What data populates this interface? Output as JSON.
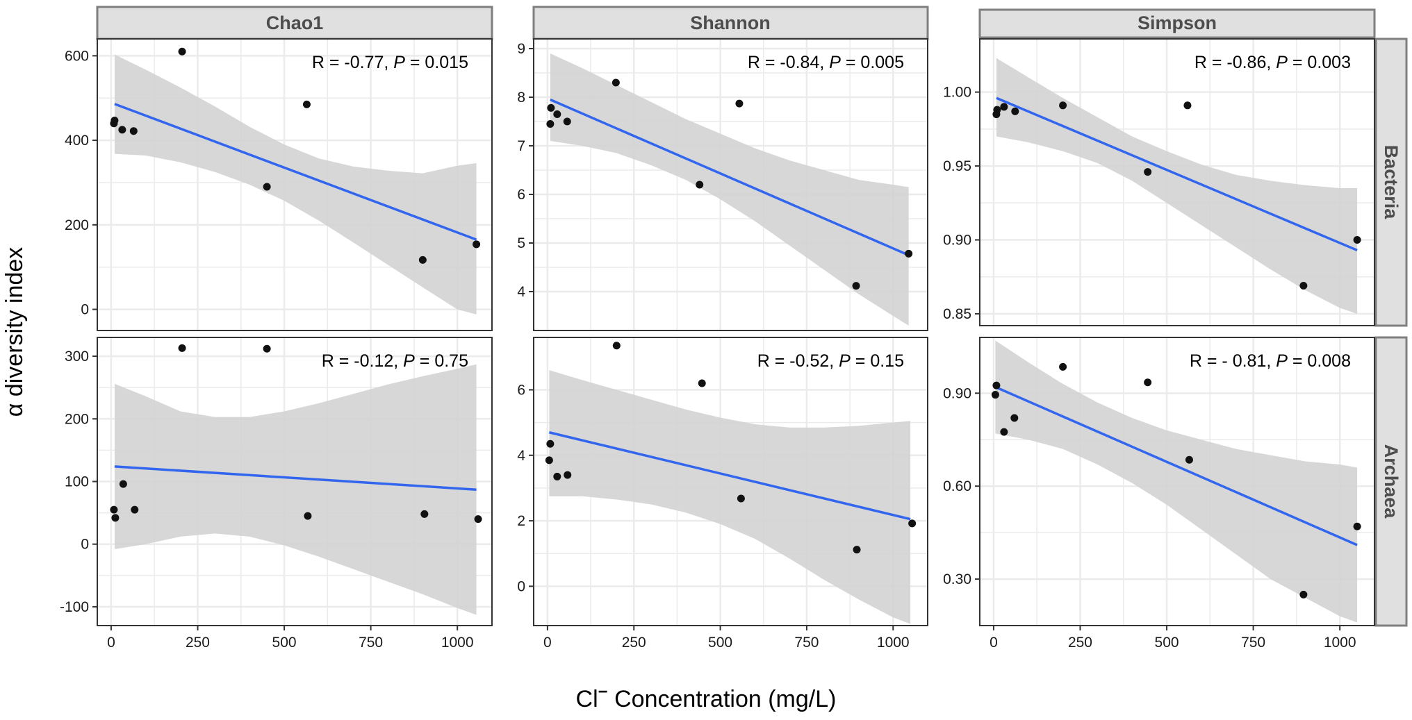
{
  "figure": {
    "y_axis_title": "α diversity index",
    "x_axis_title_prefix": "Cl",
    "x_axis_title_superscript": "−",
    "x_axis_title_suffix": " Concentration (mg/L)",
    "column_strips": [
      "Chao1",
      "Shannon",
      "Simpson"
    ],
    "row_strips": [
      "Bacteria",
      "Archaea"
    ],
    "colors": {
      "fit_line": "#3366ee",
      "ribbon": "#d3d3d3",
      "points": "#111111",
      "grid": "#ebebeb",
      "strip_fill": "#e0e0e0",
      "strip_border": "#7f7f7f",
      "panel_border": "#333333"
    }
  },
  "chart_data": [
    {
      "type": "scatter",
      "metric": "Chao1",
      "group": "Bacteria",
      "annotation": {
        "r": "R = -0.77, ",
        "p_label": "P",
        "p_value": " = 0.015"
      },
      "xlim": [
        -40,
        1100
      ],
      "ylim": [
        -50,
        640
      ],
      "xticks": [
        0,
        250,
        500,
        750,
        1000
      ],
      "yticks": [
        0,
        200,
        400,
        600
      ],
      "xticklabels": [
        "0",
        "250",
        "500",
        "750",
        "1000"
      ],
      "yticklabels": [
        "0",
        "200",
        "400",
        "600"
      ],
      "x": [
        8,
        10,
        32,
        65,
        205,
        450,
        565,
        900,
        1055
      ],
      "y": [
        440,
        447,
        425,
        422,
        610,
        290,
        485,
        117,
        154
      ],
      "fit": {
        "x": [
          10,
          1055
        ],
        "y": [
          486,
          165
        ]
      },
      "band": {
        "x": [
          10,
          100,
          200,
          300,
          400,
          500,
          600,
          700,
          800,
          900,
          1000,
          1055
        ],
        "lower": [
          368,
          364,
          348,
          325,
          295,
          257,
          210,
          158,
          105,
          52,
          0,
          -12
        ],
        "upper": [
          603,
          567,
          525,
          480,
          432,
          390,
          357,
          338,
          328,
          322,
          340,
          346
        ]
      }
    },
    {
      "type": "scatter",
      "metric": "Shannon",
      "group": "Bacteria",
      "annotation": {
        "r": "R = -0.84, ",
        "p_label": "P",
        "p_value": " = 0.005"
      },
      "xlim": [
        -40,
        1100
      ],
      "ylim": [
        3.2,
        9.2
      ],
      "xticks": [
        0,
        250,
        500,
        750,
        1000
      ],
      "yticks": [
        4,
        5,
        6,
        7,
        8,
        9
      ],
      "xticklabels": [
        "0",
        "250",
        "500",
        "750",
        "1000"
      ],
      "yticklabels": [
        "4",
        "5",
        "6",
        "7",
        "8",
        "9"
      ],
      "x": [
        8,
        10,
        28,
        57,
        198,
        440,
        555,
        893,
        1045
      ],
      "y": [
        7.45,
        7.78,
        7.65,
        7.5,
        8.3,
        6.2,
        7.87,
        4.12,
        4.78
      ],
      "fit": {
        "x": [
          8,
          1045
        ],
        "y": [
          7.95,
          4.75
        ]
      },
      "band": {
        "x": [
          8,
          100,
          200,
          300,
          400,
          500,
          600,
          700,
          800,
          900,
          1000,
          1045
        ],
        "lower": [
          7.1,
          7.0,
          6.85,
          6.6,
          6.3,
          5.9,
          5.45,
          4.95,
          4.45,
          3.95,
          3.5,
          3.3
        ],
        "upper": [
          8.9,
          8.6,
          8.25,
          7.9,
          7.55,
          7.25,
          6.95,
          6.7,
          6.5,
          6.3,
          6.2,
          6.15
        ]
      }
    },
    {
      "type": "scatter",
      "metric": "Simpson",
      "group": "Bacteria",
      "annotation": {
        "r": "R = -0.86, ",
        "p_label": "P",
        "p_value": " = 0.003"
      },
      "xlim": [
        -40,
        1100
      ],
      "ylim": [
        0.842,
        1.036
      ],
      "xticks": [
        0,
        250,
        500,
        750,
        1000
      ],
      "yticks": [
        0.85,
        0.9,
        0.95,
        1.0
      ],
      "xticklabels": [
        "0",
        "250",
        "500",
        "750",
        "1000"
      ],
      "yticklabels": [
        "0.85",
        "0.90",
        "0.95",
        "1.00"
      ],
      "x": [
        8,
        10,
        30,
        62,
        200,
        445,
        560,
        895,
        1050
      ],
      "y": [
        0.985,
        0.988,
        0.99,
        0.987,
        0.991,
        0.946,
        0.991,
        0.869,
        0.9
      ],
      "fit": {
        "x": [
          8,
          1050
        ],
        "y": [
          0.996,
          0.893
        ]
      },
      "band": {
        "x": [
          8,
          100,
          200,
          300,
          400,
          500,
          600,
          700,
          800,
          900,
          1000,
          1050
        ],
        "lower": [
          0.97,
          0.966,
          0.96,
          0.952,
          0.94,
          0.925,
          0.91,
          0.895,
          0.88,
          0.866,
          0.854,
          0.85
        ],
        "upper": [
          1.023,
          1.01,
          0.996,
          0.983,
          0.97,
          0.96,
          0.951,
          0.944,
          0.94,
          0.937,
          0.935,
          0.935
        ]
      }
    },
    {
      "type": "scatter",
      "metric": "Chao1",
      "group": "Archaea",
      "annotation": {
        "r": "R = -0.12, ",
        "p_label": "P",
        "p_value": " = 0.75"
      },
      "xlim": [
        -40,
        1100
      ],
      "ylim": [
        -130,
        330
      ],
      "xticks": [
        0,
        250,
        500,
        750,
        1000
      ],
      "yticks": [
        -100,
        0,
        100,
        200,
        300
      ],
      "xticklabels": [
        "0",
        "250",
        "500",
        "750",
        "1000"
      ],
      "yticklabels": [
        "-100",
        "0",
        "100",
        "200",
        "300"
      ],
      "x": [
        8,
        12,
        35,
        68,
        205,
        450,
        568,
        905,
        1060
      ],
      "y": [
        55,
        42,
        96,
        55,
        313,
        312,
        45,
        48,
        40
      ],
      "fit": {
        "x": [
          10,
          1055
        ],
        "y": [
          124,
          87
        ]
      },
      "band": {
        "x": [
          10,
          100,
          200,
          300,
          400,
          500,
          600,
          700,
          800,
          900,
          1000,
          1055
        ],
        "lower": [
          -8,
          0,
          12,
          17,
          12,
          -2,
          -20,
          -40,
          -60,
          -80,
          -102,
          -113
        ],
        "upper": [
          256,
          236,
          212,
          203,
          203,
          212,
          225,
          240,
          255,
          268,
          280,
          287
        ]
      }
    },
    {
      "type": "scatter",
      "metric": "Shannon",
      "group": "Archaea",
      "annotation": {
        "r": "R = -0.52, ",
        "p_label": "P",
        "p_value": " = 0.15"
      },
      "xlim": [
        -40,
        1100
      ],
      "ylim": [
        -1.2,
        7.6
      ],
      "xticks": [
        0,
        250,
        500,
        750,
        1000
      ],
      "yticks": [
        0,
        2,
        4,
        6
      ],
      "xticklabels": [
        "0",
        "250",
        "500",
        "750",
        "1000"
      ],
      "yticklabels": [
        "0",
        "2",
        "4",
        "6"
      ],
      "x": [
        5,
        8,
        28,
        58,
        200,
        447,
        560,
        895,
        1055
      ],
      "y": [
        3.85,
        4.35,
        3.35,
        3.4,
        7.35,
        6.2,
        2.68,
        1.12,
        1.92
      ],
      "fit": {
        "x": [
          5,
          1050
        ],
        "y": [
          4.7,
          2.05
        ]
      },
      "band": {
        "x": [
          5,
          100,
          200,
          300,
          400,
          500,
          600,
          700,
          800,
          900,
          1000,
          1050
        ],
        "lower": [
          2.75,
          2.75,
          2.65,
          2.5,
          2.25,
          1.9,
          1.45,
          0.85,
          0.2,
          -0.4,
          -0.95,
          -1.15
        ],
        "upper": [
          6.6,
          6.3,
          6.0,
          5.7,
          5.4,
          5.15,
          4.95,
          4.85,
          4.85,
          4.9,
          5.0,
          5.05
        ]
      }
    },
    {
      "type": "scatter",
      "metric": "Simpson",
      "group": "Archaea",
      "annotation": {
        "r": "R = - 0.81, ",
        "p_label": "P",
        "p_value": " = 0.008"
      },
      "xlim": [
        -40,
        1100
      ],
      "ylim": [
        0.15,
        1.08
      ],
      "xticks": [
        0,
        250,
        500,
        750,
        1000
      ],
      "yticks": [
        0.3,
        0.6,
        0.9
      ],
      "xticklabels": [
        "0",
        "250",
        "500",
        "750",
        "1000"
      ],
      "yticklabels": [
        "0.30",
        "0.60",
        "0.90"
      ],
      "x": [
        5,
        8,
        30,
        60,
        200,
        445,
        565,
        895,
        1050
      ],
      "y": [
        0.895,
        0.925,
        0.775,
        0.82,
        0.985,
        0.935,
        0.685,
        0.25,
        0.47
      ],
      "fit": {
        "x": [
          5,
          1050
        ],
        "y": [
          0.92,
          0.41
        ]
      },
      "band": {
        "x": [
          5,
          100,
          200,
          300,
          400,
          500,
          600,
          700,
          800,
          900,
          1000,
          1050
        ],
        "lower": [
          0.77,
          0.75,
          0.72,
          0.67,
          0.61,
          0.54,
          0.46,
          0.38,
          0.3,
          0.24,
          0.18,
          0.16
        ],
        "upper": [
          1.07,
          1.0,
          0.93,
          0.87,
          0.82,
          0.78,
          0.75,
          0.72,
          0.7,
          0.68,
          0.67,
          0.66
        ]
      }
    }
  ]
}
